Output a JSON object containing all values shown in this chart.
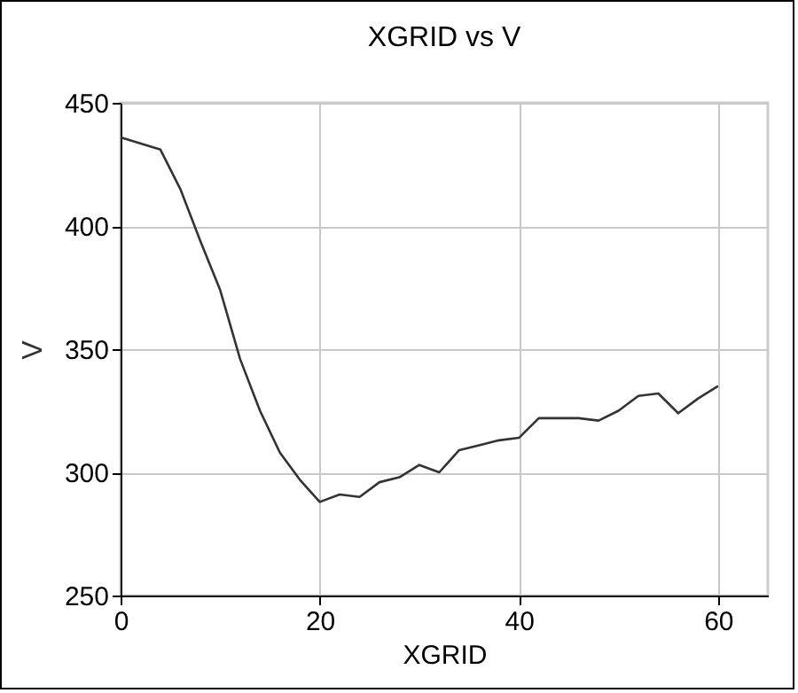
{
  "chart_data": {
    "type": "line",
    "title": "XGRID vs V",
    "xlabel": "XGRID",
    "ylabel": "V",
    "x": [
      0,
      4,
      6,
      8,
      10,
      12,
      14,
      16,
      18,
      20,
      22,
      24,
      26,
      28,
      30,
      32,
      34,
      36,
      38,
      40,
      42,
      44,
      46,
      48,
      50,
      52,
      54,
      56,
      58,
      60
    ],
    "series": [
      {
        "color": "#333333",
        "values": [
          436,
          431,
          415,
          394,
          374,
          346,
          325,
          308,
          297,
          288,
          291,
          290,
          296,
          298,
          303,
          300,
          309,
          311,
          313,
          314,
          322,
          322,
          322,
          321,
          325,
          331,
          332,
          324,
          330,
          335
        ]
      }
    ],
    "xlim": [
      0,
      65
    ],
    "xticks": [
      0,
      20,
      40,
      60
    ],
    "ylim": [
      250,
      450
    ],
    "yticks": [
      250,
      300,
      350,
      400,
      450
    ],
    "grid": true,
    "legend": false,
    "marker": "none",
    "line_style": "solid"
  }
}
